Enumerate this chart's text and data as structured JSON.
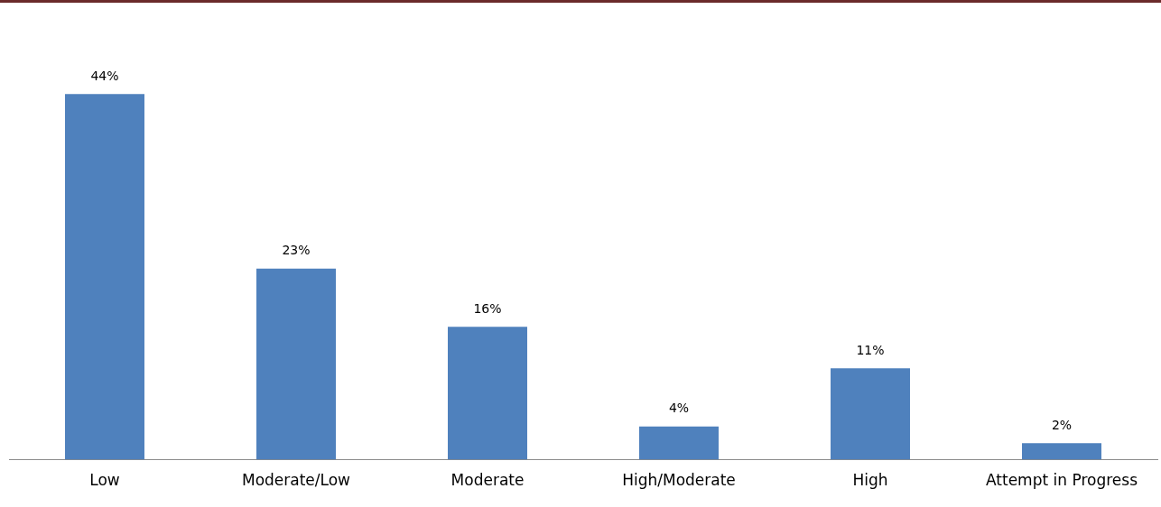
{
  "chart_data": {
    "type": "bar",
    "categories": [
      "Low",
      "Moderate/Low",
      "Moderate",
      "High/Moderate",
      "High",
      "Attempt in Progress"
    ],
    "values": [
      44,
      23,
      16,
      4,
      11,
      2
    ],
    "color": "#4f81bd",
    "data_labels": true,
    "value_labels": [
      "44%",
      "23%",
      "16%",
      "4%",
      "11%",
      "2%"
    ],
    "grid": false,
    "legend": false
  }
}
